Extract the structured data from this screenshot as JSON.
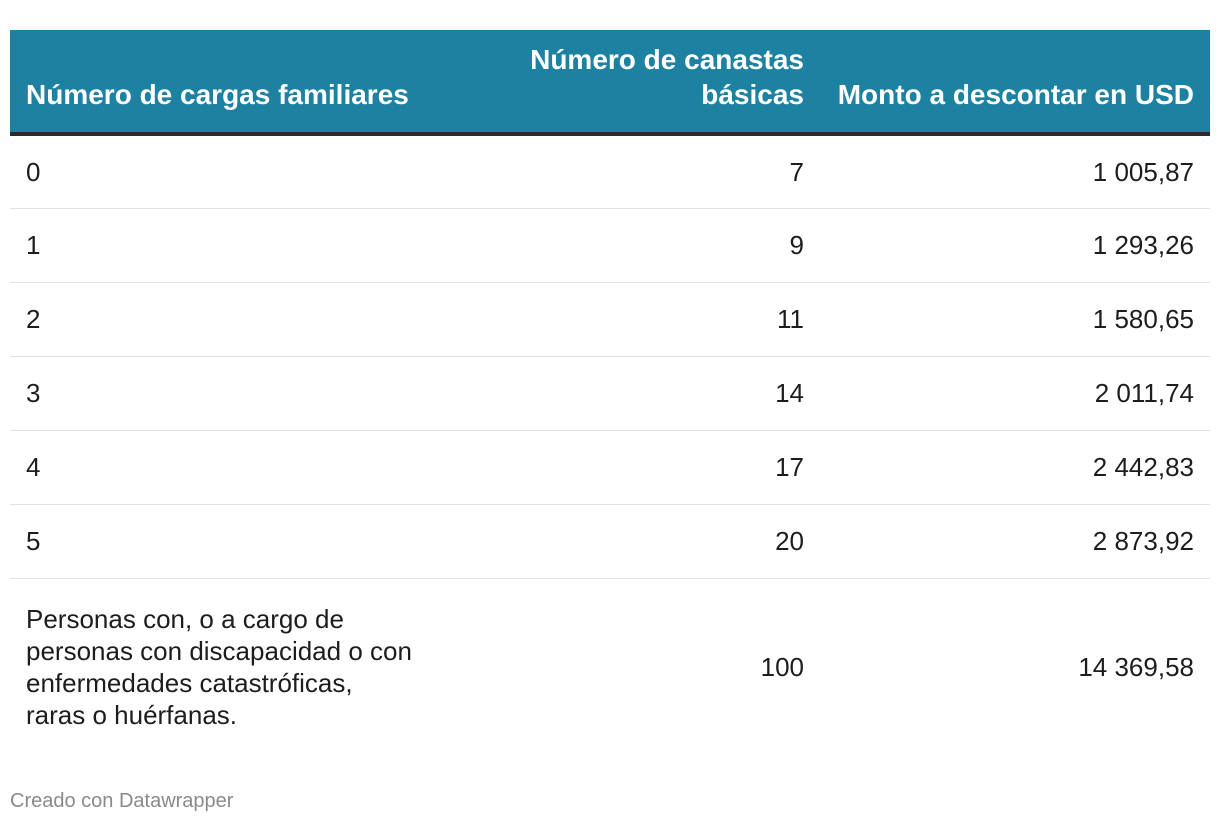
{
  "chart_data": {
    "type": "table",
    "columns": [
      "Número de cargas familiares",
      "Número de canastas básicas",
      "Monto a descontar en USD"
    ],
    "rows": [
      [
        "0",
        "7",
        "1 005,87"
      ],
      [
        "1",
        "9",
        "1 293,26"
      ],
      [
        "2",
        "11",
        "1 580,65"
      ],
      [
        "3",
        "14",
        "2 011,74"
      ],
      [
        "4",
        "17",
        "2 442,83"
      ],
      [
        "5",
        "20",
        "2 873,92"
      ],
      [
        "Personas con, o a cargo de personas con discapacidad o con enfermedades catastróficas, raras o huérfanas.",
        "100",
        "14 369,58"
      ]
    ],
    "header_color": "#1d81a2"
  },
  "footer": {
    "credit": "Creado con Datawrapper"
  }
}
